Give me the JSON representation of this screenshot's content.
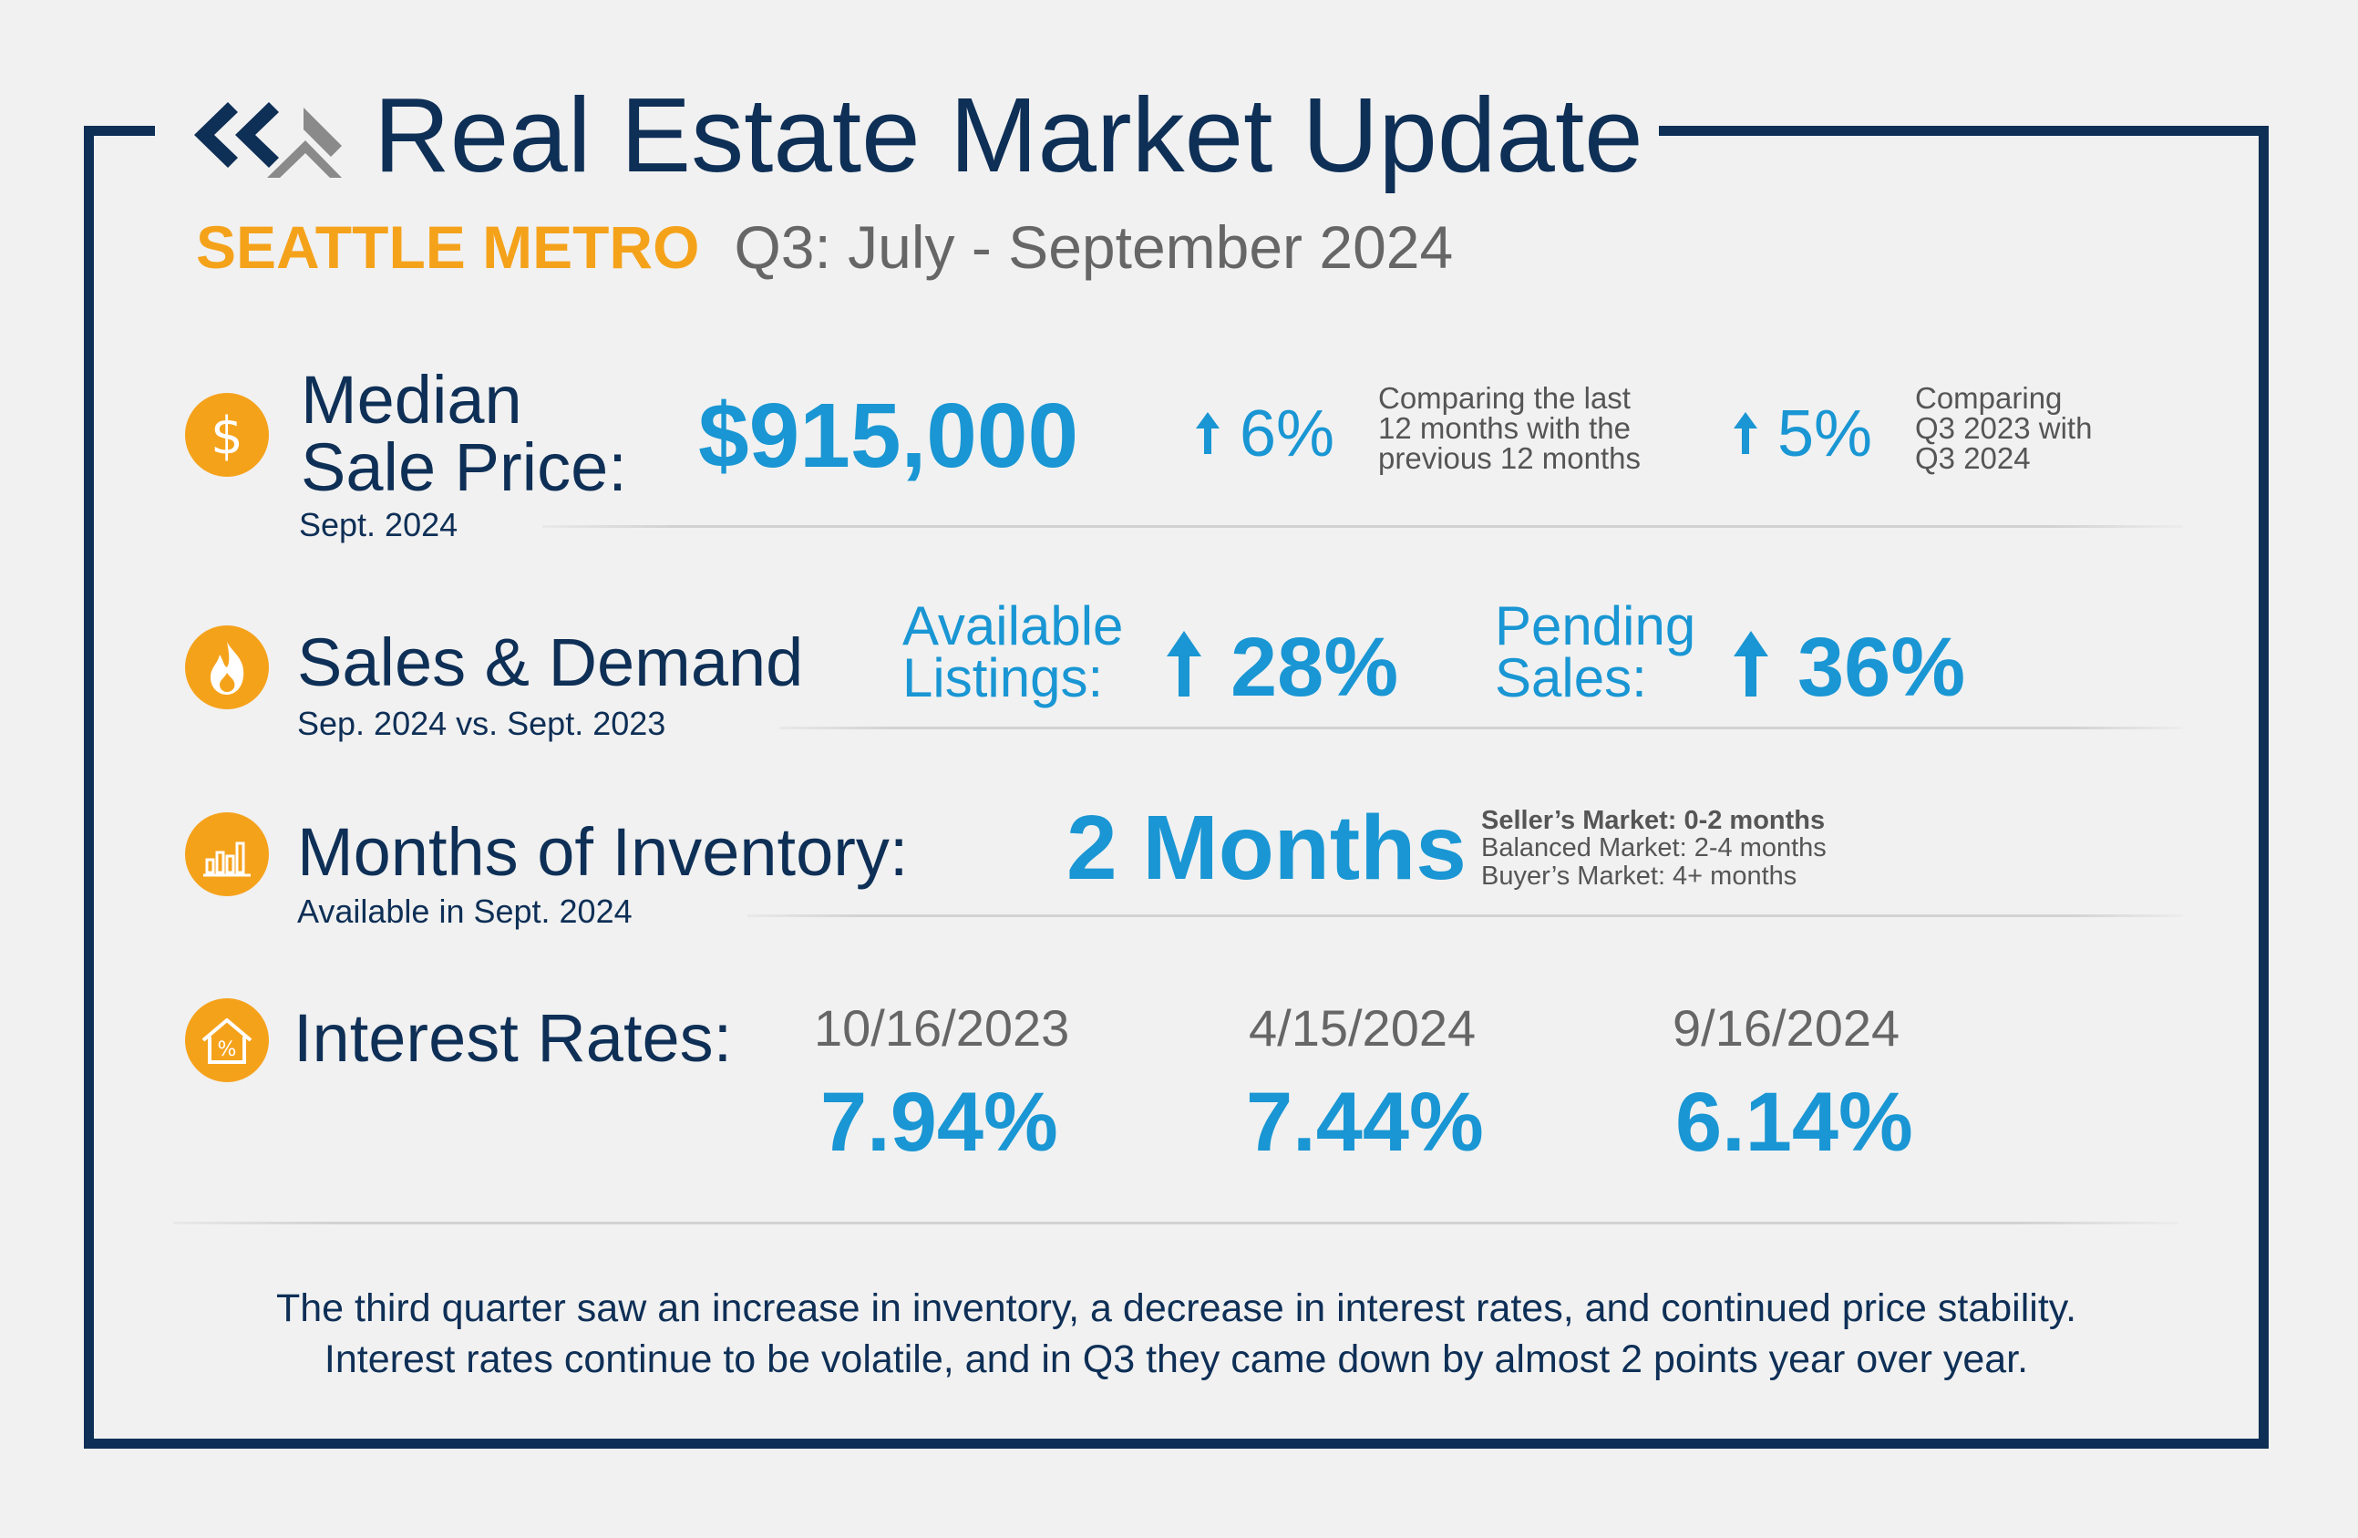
{
  "header": {
    "title": "Real Estate Market Update",
    "region": "SEATTLE METRO",
    "period": "Q3: July - September 2024"
  },
  "median_price": {
    "icon": "dollar-icon",
    "label_line1": "Median",
    "label_line2": "Sale Price:",
    "sublabel": "Sept. 2024",
    "value": "$915,000",
    "change1": "6%",
    "change1_note": [
      "Comparing the last",
      "12 months with the",
      "previous 12 months"
    ],
    "change2": "5%",
    "change2_note": [
      "Comparing",
      "Q3 2023 with",
      "Q3 2024"
    ]
  },
  "sales_demand": {
    "icon": "flame-icon",
    "label": "Sales & Demand",
    "sublabel": "Sep. 2024 vs. Sept. 2023",
    "listings_label": [
      "Available",
      "Listings:"
    ],
    "listings_change": "28%",
    "pending_label": [
      "Pending",
      "Sales:"
    ],
    "pending_change": "36%"
  },
  "inventory": {
    "icon": "bar-chart-icon",
    "label": "Months of Inventory:",
    "sublabel": "Available in Sept. 2024",
    "value": "2 Months",
    "legend": [
      "Seller’s Market: 0-2 months",
      "Balanced Market: 2-4 months",
      "Buyer’s Market: 4+ months"
    ]
  },
  "interest_rates": {
    "icon": "house-percent-icon",
    "label": "Interest Rates:",
    "rates": [
      {
        "date": "10/16/2023",
        "rate": "7.94%"
      },
      {
        "date": "4/15/2024",
        "rate": "7.44%"
      },
      {
        "date": "9/16/2024",
        "rate": "6.14%"
      }
    ]
  },
  "footer": {
    "line1": "The third quarter saw an increase in inventory, a decrease in interest rates, and continued price stability.",
    "line2": "Interest rates continue to be volatile, and in Q3 they came down by almost 2 points year over year."
  },
  "colors": {
    "navy": "#0e2f56",
    "orange": "#f5a21b",
    "blue": "#1996d3",
    "gray": "#666666"
  }
}
